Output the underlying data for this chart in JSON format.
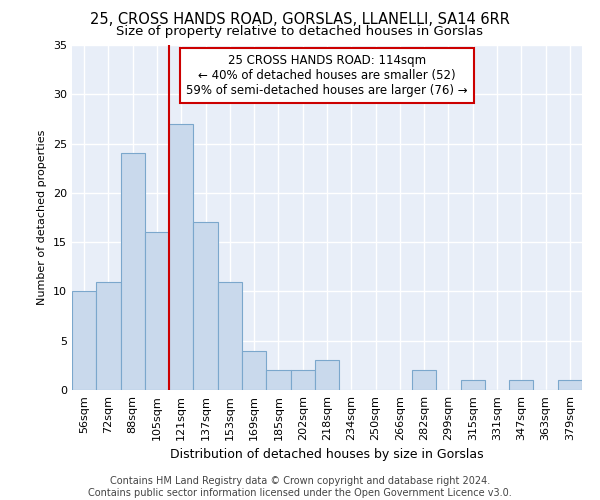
{
  "title1": "25, CROSS HANDS ROAD, GORSLAS, LLANELLI, SA14 6RR",
  "title2": "Size of property relative to detached houses in Gorslas",
  "xlabel": "Distribution of detached houses by size in Gorslas",
  "ylabel": "Number of detached properties",
  "categories": [
    "56sqm",
    "72sqm",
    "88sqm",
    "105sqm",
    "121sqm",
    "137sqm",
    "153sqm",
    "169sqm",
    "185sqm",
    "202sqm",
    "218sqm",
    "234sqm",
    "250sqm",
    "266sqm",
    "282sqm",
    "299sqm",
    "315sqm",
    "331sqm",
    "347sqm",
    "363sqm",
    "379sqm"
  ],
  "values": [
    10,
    11,
    24,
    16,
    27,
    17,
    11,
    4,
    2,
    2,
    3,
    0,
    0,
    0,
    2,
    0,
    1,
    0,
    1,
    0,
    1
  ],
  "bar_color": "#c9d9ec",
  "bar_edge_color": "#7ba7cc",
  "vline_color": "#cc0000",
  "annotation_line1": "25 CROSS HANDS ROAD: 114sqm",
  "annotation_line2": "← 40% of detached houses are smaller (52)",
  "annotation_line3": "59% of semi-detached houses are larger (76) →",
  "annotation_box_color": "white",
  "annotation_box_edge": "#cc0000",
  "ylim": [
    0,
    35
  ],
  "yticks": [
    0,
    5,
    10,
    15,
    20,
    25,
    30,
    35
  ],
  "background_color": "#e8eef8",
  "grid_color": "white",
  "footer": "Contains HM Land Registry data © Crown copyright and database right 2024.\nContains public sector information licensed under the Open Government Licence v3.0.",
  "title1_fontsize": 10.5,
  "title2_fontsize": 9.5,
  "xlabel_fontsize": 9,
  "ylabel_fontsize": 8,
  "tick_fontsize": 8,
  "footer_fontsize": 7
}
